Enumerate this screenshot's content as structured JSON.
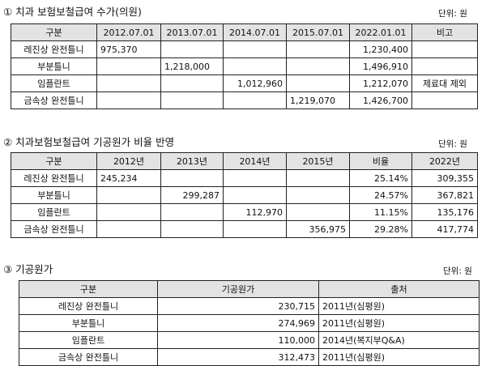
{
  "section1": {
    "title": "① 치과 보험보철급여 수가(의원)",
    "unit": "단위: 원",
    "headers": [
      "구분",
      "2012.07.01",
      "2013.07.01",
      "2014.07.01",
      "2015.07.01",
      "2022.01.01",
      "비고"
    ],
    "rows": [
      [
        "레진상 완전틀니",
        "975,370",
        "",
        "",
        "",
        "1,230,400",
        ""
      ],
      [
        "부분틀니",
        "",
        "1,218,000",
        "",
        "",
        "1,496,910",
        ""
      ],
      [
        "임플란트",
        "",
        "",
        "1,012,960",
        "",
        "1,212,070",
        "제료대 제외"
      ],
      [
        "금속상 완전틀니",
        "",
        "",
        "",
        "1,219,070",
        "1,426,700",
        ""
      ]
    ]
  },
  "section2": {
    "title": "② 치과보험보철급여 기공원가 비율 반영",
    "unit": "단위: 원",
    "headers": [
      "구분",
      "2012년",
      "2013년",
      "2014년",
      "2015년",
      "비율",
      "2022년"
    ],
    "rows": [
      [
        "레진상 완전틀니",
        "245,234",
        "",
        "",
        "",
        "25.14%",
        "309,355"
      ],
      [
        "부분틀니",
        "",
        "299,287",
        "",
        "",
        "24.57%",
        "367,821"
      ],
      [
        "임플란트",
        "",
        "",
        "112,970",
        "",
        "11.15%",
        "135,176"
      ],
      [
        "금속상 완전틀니",
        "",
        "",
        "",
        "356,975",
        "29.28%",
        "417,774"
      ]
    ]
  },
  "section3": {
    "title": "③ 기공원가",
    "unit": "단위: 원",
    "headers": [
      "구분",
      "기공원가",
      "출처"
    ],
    "rows": [
      [
        "레진상 완전틀니",
        "230,715",
        "2011년(심평원)"
      ],
      [
        "부분틀니",
        "274,969",
        "2011년(심평원)"
      ],
      [
        "임플란트",
        "110,000",
        "2014년(복지부Q&A)"
      ],
      [
        "금속상 완전틀니",
        "312,473",
        "2011년(심평원)"
      ]
    ]
  }
}
